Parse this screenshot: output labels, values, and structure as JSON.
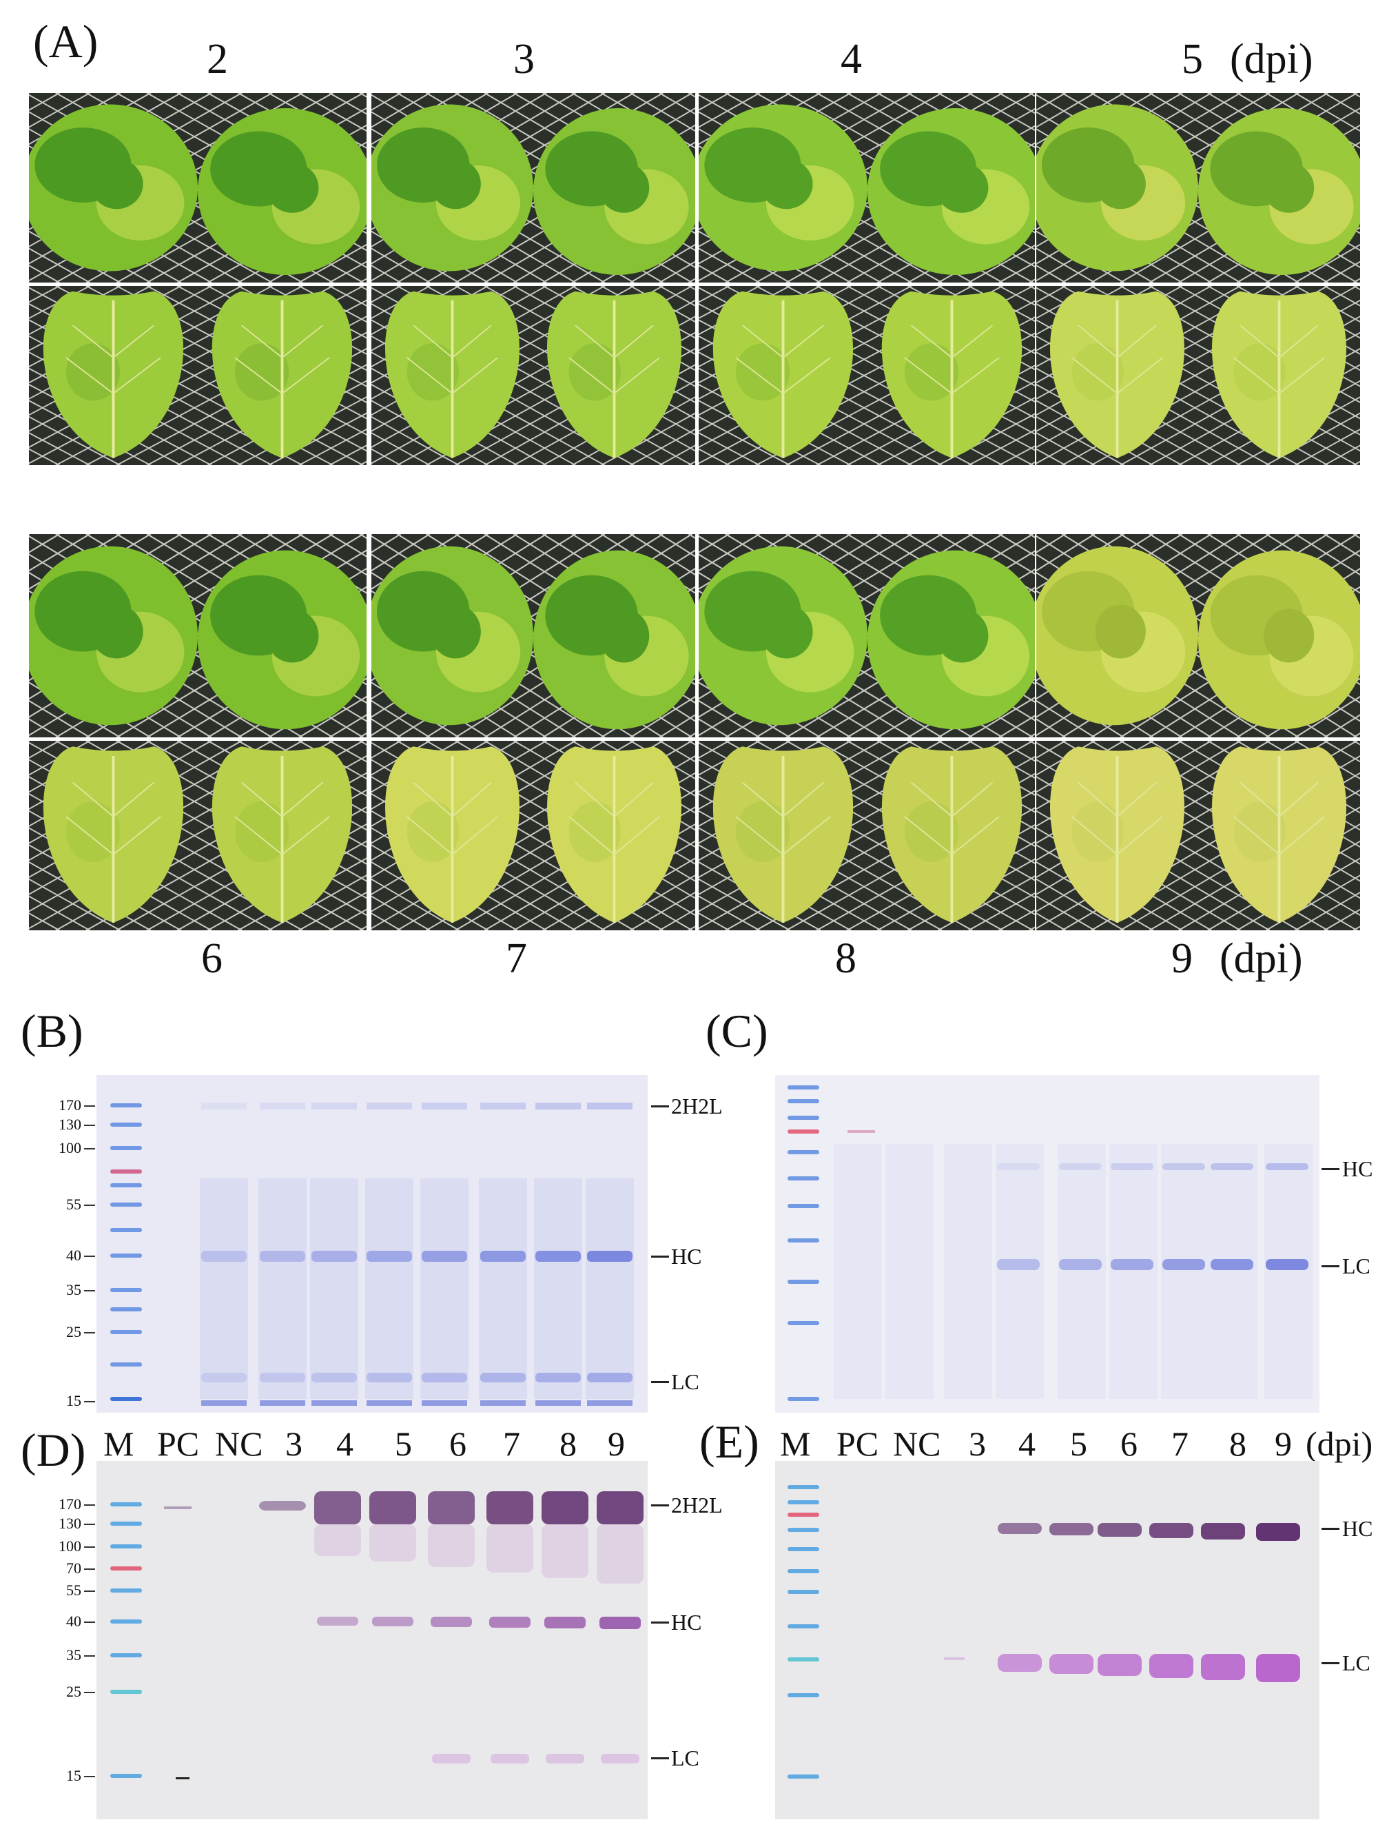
{
  "panels": {
    "A": {
      "letter": "(A)",
      "top_days": [
        "2",
        "3",
        "4",
        "5"
      ],
      "top_unit": "(dpi)",
      "bottom_days": [
        "6",
        "7",
        "8",
        "9"
      ],
      "bottom_unit": "(dpi)"
    },
    "B": {
      "letter": "(B)",
      "mw_markers": [
        "170",
        "130",
        "100",
        "55",
        "40",
        "35",
        "25",
        "15"
      ],
      "band_labels": [
        "2H2L",
        "HC",
        "LC"
      ]
    },
    "C": {
      "letter": "(C)",
      "band_labels": [
        "HC",
        "LC"
      ]
    },
    "D": {
      "letter": "(D)",
      "lanes": [
        "M",
        "PC",
        "NC",
        "3",
        "4",
        "5",
        "6",
        "7",
        "8",
        "9"
      ],
      "mw_markers": [
        "170",
        "130",
        "100",
        "70",
        "55",
        "40",
        "35",
        "25",
        "15"
      ],
      "band_labels": [
        "2H2L",
        "HC",
        "LC"
      ]
    },
    "E": {
      "letter": "(E)",
      "lanes": [
        "M",
        "PC",
        "NC",
        "3",
        "4",
        "5",
        "6",
        "7",
        "8",
        "9"
      ],
      "unit": "(dpi)",
      "band_labels": [
        "HC",
        "LC"
      ]
    }
  },
  "colors": {
    "leaf_light": "#a8cf3e",
    "leaf_dark": "#4f9a22",
    "leaf_yellow": "#c9d651",
    "grid_bg": "#2a2f2a",
    "coomassie_bg": "#e6e8f4",
    "coomassie_band": "#5a6ad8",
    "western_bg": "#e9e9eb",
    "western_band": "#5b2a6b",
    "marker_blue": "#4aa0e0",
    "marker_red": "#e0506a"
  }
}
